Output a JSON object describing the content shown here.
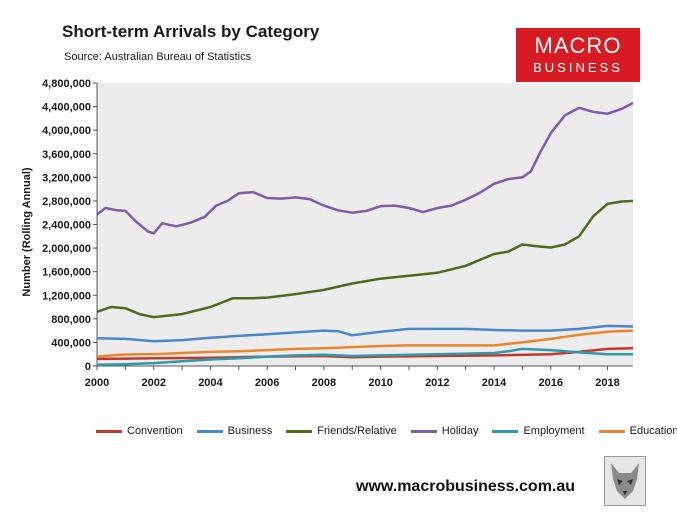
{
  "header": {
    "title": "Short-term Arrivals by Category",
    "source": "Source: Australian Bureau of Statistics"
  },
  "logo": {
    "line1": "MACRO",
    "line2": "BUSINESS"
  },
  "footer": {
    "website": "www.macrobusiness.com.au"
  },
  "colors": {
    "plot_background": "#ececec",
    "logo_red": "#d81b22"
  },
  "chart_data": {
    "type": "line",
    "title": "Short-term Arrivals by Category",
    "xlabel": "",
    "ylabel": "Number (Rolling Annual)",
    "xlim": [
      2000,
      2018.9
    ],
    "ylim": [
      0,
      4800000
    ],
    "y_ticks": [
      0,
      400000,
      800000,
      1200000,
      1600000,
      2000000,
      2400000,
      2800000,
      3200000,
      3600000,
      4000000,
      4400000,
      4800000
    ],
    "y_tick_labels": [
      "0",
      "400,000",
      "800,000",
      "1,200,000",
      "1,600,000",
      "2,000,000",
      "2,400,000",
      "2,800,000",
      "3,200,000",
      "3,600,000",
      "4,000,000",
      "4,400,000",
      "4,800,000"
    ],
    "x_ticks": [
      2000,
      2002,
      2004,
      2006,
      2008,
      2010,
      2012,
      2014,
      2016,
      2018
    ],
    "x_tick_labels": [
      "2000",
      "2002",
      "2004",
      "2006",
      "2008",
      "2010",
      "2012",
      "2014",
      "2016",
      "2018"
    ],
    "grid": false,
    "legend_position": "bottom",
    "series": [
      {
        "name": "Convention",
        "color": "#c0392b",
        "x": [
          2000,
          2002,
          2004,
          2005,
          2006,
          2008,
          2009,
          2010,
          2012,
          2014,
          2016,
          2017,
          2018,
          2018.9
        ],
        "y": [
          120000,
          130000,
          140000,
          150000,
          160000,
          170000,
          150000,
          160000,
          170000,
          180000,
          200000,
          240000,
          290000,
          300000
        ]
      },
      {
        "name": "Business",
        "color": "#4a86c8",
        "x": [
          2000,
          2001,
          2002,
          2003,
          2004,
          2005,
          2006,
          2007,
          2008,
          2008.5,
          2009,
          2010,
          2011,
          2012,
          2013,
          2014,
          2015,
          2016,
          2017,
          2018,
          2018.9
        ],
        "y": [
          470000,
          460000,
          420000,
          440000,
          480000,
          510000,
          540000,
          570000,
          600000,
          590000,
          520000,
          580000,
          630000,
          630000,
          630000,
          610000,
          600000,
          600000,
          630000,
          680000,
          670000
        ]
      },
      {
        "name": "Friends/Relative",
        "color": "#4d6b1f",
        "x": [
          2000,
          2000.5,
          2001,
          2001.5,
          2002,
          2003,
          2004,
          2004.8,
          2005.5,
          2006,
          2007,
          2008,
          2009,
          2010,
          2011,
          2012,
          2013,
          2014,
          2014.5,
          2015,
          2015.5,
          2016,
          2016.5,
          2017,
          2017.5,
          2018,
          2018.5,
          2018.9
        ],
        "y": [
          920000,
          1000000,
          980000,
          880000,
          830000,
          880000,
          1000000,
          1150000,
          1150000,
          1160000,
          1220000,
          1290000,
          1400000,
          1480000,
          1530000,
          1580000,
          1700000,
          1900000,
          1940000,
          2060000,
          2030000,
          2010000,
          2060000,
          2200000,
          2540000,
          2750000,
          2790000,
          2800000
        ]
      },
      {
        "name": "Holiday",
        "color": "#7e5ca8",
        "x": [
          2000,
          2000.3,
          2000.7,
          2001,
          2001.4,
          2001.8,
          2002,
          2002.3,
          2002.8,
          2003.3,
          2003.8,
          2004.2,
          2004.6,
          2005,
          2005.5,
          2006,
          2006.5,
          2007,
          2007.5,
          2008,
          2008.5,
          2009,
          2009.5,
          2010,
          2010.5,
          2011,
          2011.5,
          2012,
          2012.5,
          2013,
          2013.5,
          2014,
          2014.5,
          2015,
          2015.3,
          2015.6,
          2016,
          2016.5,
          2017,
          2017.5,
          2018,
          2018.5,
          2018.9
        ],
        "y": [
          2570000,
          2680000,
          2640000,
          2630000,
          2440000,
          2280000,
          2250000,
          2420000,
          2370000,
          2430000,
          2530000,
          2720000,
          2800000,
          2930000,
          2950000,
          2850000,
          2840000,
          2860000,
          2830000,
          2720000,
          2640000,
          2600000,
          2630000,
          2710000,
          2720000,
          2680000,
          2610000,
          2680000,
          2720000,
          2820000,
          2940000,
          3090000,
          3170000,
          3200000,
          3300000,
          3600000,
          3950000,
          4250000,
          4380000,
          4310000,
          4280000,
          4360000,
          4460000
        ]
      },
      {
        "name": "Employment",
        "color": "#2e9aad",
        "x": [
          2000,
          2001,
          2002,
          2003,
          2004,
          2005,
          2006,
          2007,
          2008,
          2009,
          2010,
          2011,
          2012,
          2013,
          2014,
          2014.5,
          2015,
          2016,
          2017,
          2018,
          2018.9
        ],
        "y": [
          20000,
          30000,
          50000,
          80000,
          110000,
          130000,
          160000,
          180000,
          190000,
          170000,
          180000,
          190000,
          200000,
          210000,
          220000,
          250000,
          290000,
          270000,
          230000,
          200000,
          200000
        ]
      },
      {
        "name": "Education",
        "color": "#e8862e",
        "x": [
          2000,
          2000.8,
          2001.5,
          2002,
          2003,
          2004,
          2005,
          2006,
          2007,
          2008,
          2009,
          2010,
          2011,
          2012,
          2013,
          2014,
          2015,
          2016,
          2017,
          2018,
          2018.9
        ],
        "y": [
          160000,
          190000,
          200000,
          200000,
          220000,
          240000,
          250000,
          270000,
          290000,
          300000,
          320000,
          340000,
          350000,
          350000,
          350000,
          350000,
          400000,
          460000,
          530000,
          580000,
          600000
        ]
      }
    ]
  }
}
